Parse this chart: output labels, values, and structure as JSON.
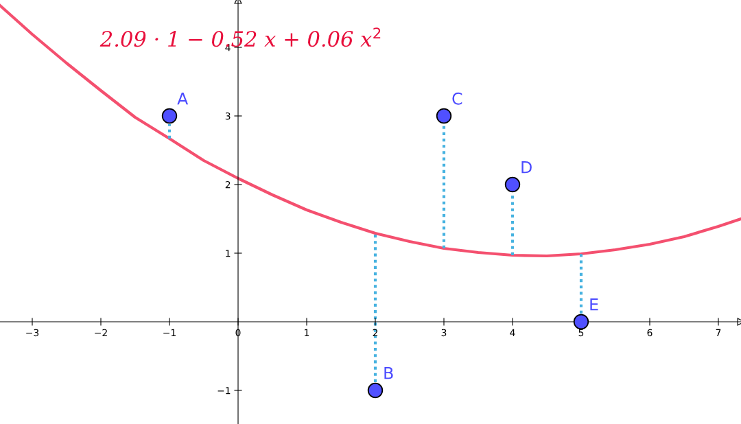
{
  "chart_data": {
    "type": "scatter",
    "xlim": [
      -3.47,
      7.33
    ],
    "ylim": [
      -1.49,
      4.69
    ],
    "xticks": [
      {
        "value": -3,
        "label": "−3"
      },
      {
        "value": -2,
        "label": "−2"
      },
      {
        "value": -1,
        "label": "−1"
      },
      0,
      1,
      2,
      3,
      4,
      5,
      6,
      7
    ],
    "yticks": [
      {
        "value": -1,
        "label": "−1"
      },
      1,
      2,
      3,
      4
    ],
    "grid": false,
    "series": [
      {
        "type": "line",
        "color": "#f4506f",
        "x": [
          -3.47,
          -3,
          -2.5,
          -2,
          -1.5,
          -1,
          -0.5,
          0,
          0.5,
          1,
          1.5,
          2,
          2.5,
          3,
          3.5,
          4,
          4.5,
          5,
          5.5,
          6,
          6.5,
          7,
          7.33
        ],
        "values": [
          4.61,
          4.19,
          3.77,
          3.37,
          2.98,
          2.67,
          2.35,
          2.09,
          1.85,
          1.63,
          1.45,
          1.29,
          1.17,
          1.07,
          1.01,
          0.97,
          0.96,
          0.99,
          1.05,
          1.13,
          1.24,
          1.39,
          1.5
        ]
      },
      {
        "color": "#5050ff",
        "marker": "circle",
        "x": [
          -1,
          2,
          3,
          4,
          5
        ],
        "values": [
          3,
          -1,
          3,
          2,
          0
        ],
        "errors": [
          [
            2.67,
            2.88
          ],
          [
            -0.88,
            1.29
          ],
          [
            1.07,
            2.88
          ],
          [
            0.97,
            1.88
          ],
          [
            0.12,
            0.99
          ]
        ]
      }
    ],
    "annotations": [
      "2.09 · 1 − 0.52 x + 0.06 x$^{2}$",
      {
        "text": "A",
        "x": -1,
        "y": 3
      },
      {
        "text": "B",
        "x": 2,
        "y": -1
      },
      {
        "text": "C",
        "x": 3,
        "y": 3
      },
      {
        "text": "D",
        "x": 4,
        "y": 2
      },
      {
        "text": "E",
        "x": 5,
        "y": 0
      }
    ]
  }
}
